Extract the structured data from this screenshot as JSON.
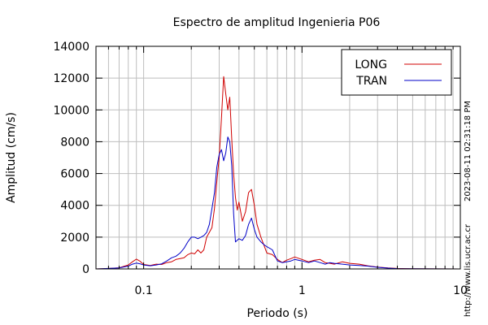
{
  "chart_data": {
    "type": "line",
    "title": "Espectro de amplitud Ingenieria P06",
    "xlabel": "Periodo (s)",
    "ylabel": "Amplitud (cm/s)",
    "x_scale": "log",
    "xlim": [
      0.05,
      10
    ],
    "ylim": [
      0,
      14000
    ],
    "grid": true,
    "legend_position": "top-right",
    "x_tick_labels": [
      "0.1",
      "1",
      "10"
    ],
    "y_tick_labels": [
      "0",
      "2000",
      "4000",
      "6000",
      "8000",
      "10000",
      "12000",
      "14000"
    ],
    "timestamp": "2023-08-11 02:31:18 PM",
    "url": "http://www.lis.ucr.ac.cr",
    "series": [
      {
        "name": "LONG",
        "color": "#d00000",
        "points": [
          [
            0.05,
            0
          ],
          [
            0.06,
            30
          ],
          [
            0.07,
            70
          ],
          [
            0.08,
            250
          ],
          [
            0.085,
            450
          ],
          [
            0.09,
            620
          ],
          [
            0.095,
            480
          ],
          [
            0.1,
            280
          ],
          [
            0.11,
            220
          ],
          [
            0.12,
            300
          ],
          [
            0.13,
            280
          ],
          [
            0.14,
            400
          ],
          [
            0.15,
            450
          ],
          [
            0.16,
            600
          ],
          [
            0.17,
            650
          ],
          [
            0.18,
            700
          ],
          [
            0.19,
            900
          ],
          [
            0.2,
            1000
          ],
          [
            0.21,
            950
          ],
          [
            0.22,
            1200
          ],
          [
            0.23,
            1000
          ],
          [
            0.24,
            1200
          ],
          [
            0.25,
            2000
          ],
          [
            0.26,
            2300
          ],
          [
            0.27,
            2600
          ],
          [
            0.28,
            3800
          ],
          [
            0.29,
            5500
          ],
          [
            0.3,
            7000
          ],
          [
            0.31,
            9500
          ],
          [
            0.32,
            12100
          ],
          [
            0.33,
            11000
          ],
          [
            0.34,
            10000
          ],
          [
            0.35,
            10800
          ],
          [
            0.36,
            8200
          ],
          [
            0.37,
            6000
          ],
          [
            0.38,
            4500
          ],
          [
            0.39,
            3700
          ],
          [
            0.4,
            4200
          ],
          [
            0.42,
            3000
          ],
          [
            0.44,
            3600
          ],
          [
            0.46,
            4800
          ],
          [
            0.48,
            5000
          ],
          [
            0.5,
            4000
          ],
          [
            0.52,
            2800
          ],
          [
            0.55,
            2000
          ],
          [
            0.58,
            1400
          ],
          [
            0.6,
            1000
          ],
          [
            0.65,
            900
          ],
          [
            0.7,
            600
          ],
          [
            0.75,
            400
          ],
          [
            0.8,
            550
          ],
          [
            0.85,
            650
          ],
          [
            0.9,
            750
          ],
          [
            1.0,
            600
          ],
          [
            1.1,
            450
          ],
          [
            1.2,
            550
          ],
          [
            1.3,
            600
          ],
          [
            1.4,
            400
          ],
          [
            1.5,
            350
          ],
          [
            1.6,
            300
          ],
          [
            1.8,
            450
          ],
          [
            2.0,
            350
          ],
          [
            2.3,
            300
          ],
          [
            2.6,
            200
          ],
          [
            3.0,
            120
          ],
          [
            3.5,
            60
          ],
          [
            4.0,
            30
          ],
          [
            5.0,
            15
          ],
          [
            7.0,
            5
          ],
          [
            10,
            0
          ]
        ]
      },
      {
        "name": "TRAN",
        "color": "#0000c8",
        "points": [
          [
            0.05,
            0
          ],
          [
            0.06,
            30
          ],
          [
            0.07,
            60
          ],
          [
            0.08,
            180
          ],
          [
            0.085,
            300
          ],
          [
            0.09,
            370
          ],
          [
            0.095,
            320
          ],
          [
            0.1,
            250
          ],
          [
            0.11,
            200
          ],
          [
            0.12,
            250
          ],
          [
            0.13,
            320
          ],
          [
            0.14,
            500
          ],
          [
            0.15,
            700
          ],
          [
            0.16,
            800
          ],
          [
            0.17,
            1000
          ],
          [
            0.18,
            1300
          ],
          [
            0.19,
            1700
          ],
          [
            0.2,
            2000
          ],
          [
            0.21,
            2000
          ],
          [
            0.22,
            1900
          ],
          [
            0.23,
            2000
          ],
          [
            0.24,
            2100
          ],
          [
            0.25,
            2300
          ],
          [
            0.26,
            2800
          ],
          [
            0.27,
            3800
          ],
          [
            0.28,
            4800
          ],
          [
            0.29,
            6400
          ],
          [
            0.3,
            7200
          ],
          [
            0.31,
            7500
          ],
          [
            0.32,
            6800
          ],
          [
            0.33,
            7300
          ],
          [
            0.34,
            8300
          ],
          [
            0.35,
            8000
          ],
          [
            0.36,
            6500
          ],
          [
            0.37,
            3500
          ],
          [
            0.38,
            1700
          ],
          [
            0.4,
            1900
          ],
          [
            0.42,
            1800
          ],
          [
            0.44,
            2100
          ],
          [
            0.46,
            2800
          ],
          [
            0.48,
            3200
          ],
          [
            0.5,
            2500
          ],
          [
            0.52,
            2000
          ],
          [
            0.55,
            1700
          ],
          [
            0.58,
            1500
          ],
          [
            0.6,
            1400
          ],
          [
            0.65,
            1200
          ],
          [
            0.7,
            500
          ],
          [
            0.75,
            400
          ],
          [
            0.8,
            450
          ],
          [
            0.85,
            500
          ],
          [
            0.9,
            600
          ],
          [
            1.0,
            500
          ],
          [
            1.1,
            400
          ],
          [
            1.2,
            500
          ],
          [
            1.3,
            400
          ],
          [
            1.4,
            300
          ],
          [
            1.5,
            400
          ],
          [
            1.6,
            350
          ],
          [
            1.8,
            300
          ],
          [
            2.0,
            250
          ],
          [
            2.3,
            220
          ],
          [
            2.6,
            180
          ],
          [
            3.0,
            100
          ],
          [
            3.5,
            50
          ],
          [
            4.0,
            20
          ],
          [
            5.0,
            10
          ],
          [
            7.0,
            5
          ],
          [
            10,
            0
          ]
        ]
      }
    ]
  }
}
